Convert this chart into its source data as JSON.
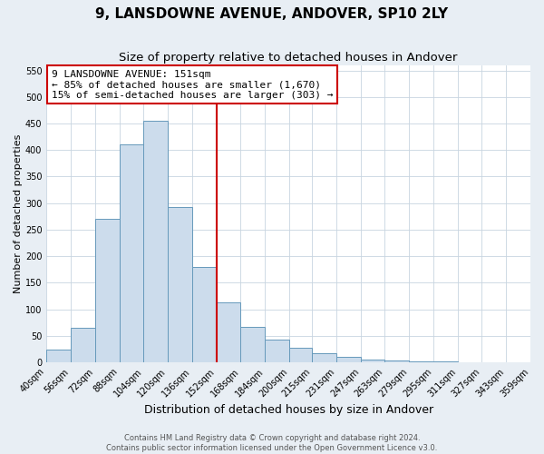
{
  "title": "9, LANSDOWNE AVENUE, ANDOVER, SP10 2LY",
  "subtitle": "Size of property relative to detached houses in Andover",
  "xlabel": "Distribution of detached houses by size in Andover",
  "ylabel": "Number of detached properties",
  "bar_edges": [
    40,
    56,
    72,
    88,
    104,
    120,
    136,
    152,
    168,
    184,
    200,
    215,
    231,
    247,
    263,
    279,
    295,
    311,
    327,
    343,
    359
  ],
  "bar_heights": [
    25,
    65,
    270,
    410,
    455,
    293,
    180,
    113,
    67,
    43,
    27,
    17,
    11,
    5,
    3,
    2,
    2,
    1,
    1,
    1
  ],
  "bar_color": "#ccdcec",
  "bar_edge_color": "#6699bb",
  "property_line_x": 152,
  "property_line_color": "#cc0000",
  "annotation_text_line1": "9 LANSDOWNE AVENUE: 151sqm",
  "annotation_text_line2": "← 85% of detached houses are smaller (1,670)",
  "annotation_text_line3": "15% of semi-detached houses are larger (303) →",
  "annotation_box_color": "#cc0000",
  "annotation_box_bg": "#ffffff",
  "ylim": [
    0,
    560
  ],
  "yticks": [
    0,
    50,
    100,
    150,
    200,
    250,
    300,
    350,
    400,
    450,
    500,
    550
  ],
  "footer_line1": "Contains HM Land Registry data © Crown copyright and database right 2024.",
  "footer_line2": "Contains public sector information licensed under the Open Government Licence v3.0.",
  "bg_color": "#e8eef4",
  "plot_bg_color": "#ffffff",
  "grid_color": "#c8d4e0",
  "title_fontsize": 11,
  "subtitle_fontsize": 9.5,
  "xlabel_fontsize": 9,
  "ylabel_fontsize": 8,
  "tick_fontsize": 7,
  "annot_fontsize": 8,
  "footer_fontsize": 6
}
